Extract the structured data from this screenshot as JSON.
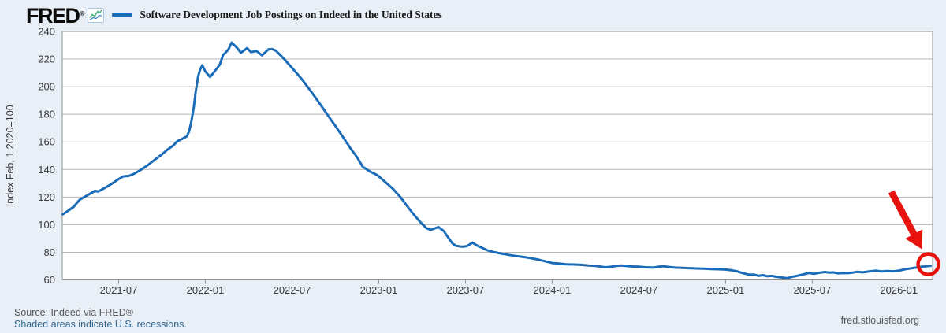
{
  "header": {
    "brand": "FRED",
    "registered": "®",
    "legend_series_label": "Software Development Job Postings on Indeed in the United States"
  },
  "footer": {
    "source": "Source: Indeed via FRED®",
    "recessions_note": "Shaded areas indicate U.S. recessions.",
    "site": "fred.stlouisfed.org"
  },
  "colors": {
    "background": "#e9eff7",
    "plot_background": "#ffffff",
    "series_blue": "#1b6cb8",
    "annotation_red": "#e8120f",
    "link_blue": "#2f6690",
    "gridline_gray": "#b5b5b5",
    "axis_gray": "#8f8f8f",
    "tick_text": "#3a3a3a"
  },
  "annotation": {
    "type": "hand-drawn-arrow-and-circle",
    "color": "#e8120f",
    "target_date": "2026-03-07",
    "target_value": 70.2,
    "meaning": "red arrow and circle highlighting the latest observation at the right edge of the line"
  },
  "chart_data": {
    "type": "line",
    "title": "Software Development Job Postings on Indeed in the United States",
    "xlabel": "",
    "ylabel": "Index Feb, 1 2020=100",
    "ylim": [
      60,
      240
    ],
    "y_ticks": [
      240,
      220,
      200,
      180,
      160,
      140,
      120,
      100,
      80,
      60
    ],
    "grid": "horizontal",
    "legend_position": "top-left",
    "x_range": [
      "2021-03-04",
      "2026-03-11"
    ],
    "x_ticks": [
      {
        "date": "2021-07-01",
        "label": "2021-07"
      },
      {
        "date": "2022-01-01",
        "label": "2022-01"
      },
      {
        "date": "2022-07-01",
        "label": "2022-07"
      },
      {
        "date": "2023-01-01",
        "label": "2023-01"
      },
      {
        "date": "2023-07-01",
        "label": "2023-07"
      },
      {
        "date": "2024-01-01",
        "label": "2024-01"
      },
      {
        "date": "2024-07-01",
        "label": "2024-07"
      },
      {
        "date": "2025-01-01",
        "label": "2025-01"
      },
      {
        "date": "2025-07-01",
        "label": "2025-07"
      },
      {
        "date": "2026-01-01",
        "label": "2026-01"
      }
    ],
    "series": [
      {
        "name": "Software Development Job Postings on Indeed in the United States",
        "color": "#1b6cb8",
        "points": [
          [
            "2021-03-05",
            107.5
          ],
          [
            "2021-03-16",
            110
          ],
          [
            "2021-03-28",
            113
          ],
          [
            "2021-04-10",
            118
          ],
          [
            "2021-04-25",
            121
          ],
          [
            "2021-05-12",
            124.5
          ],
          [
            "2021-05-19",
            124
          ],
          [
            "2021-05-28",
            125.7
          ],
          [
            "2021-06-14",
            129
          ],
          [
            "2021-07-01",
            133
          ],
          [
            "2021-07-11",
            135
          ],
          [
            "2021-07-22",
            135.3
          ],
          [
            "2021-08-01",
            136.5
          ],
          [
            "2021-08-16",
            139.5
          ],
          [
            "2021-09-01",
            143
          ],
          [
            "2021-09-16",
            147
          ],
          [
            "2021-10-01",
            151
          ],
          [
            "2021-10-13",
            154.5
          ],
          [
            "2021-10-25",
            157.5
          ],
          [
            "2021-11-03",
            160.5
          ],
          [
            "2021-11-12",
            162
          ],
          [
            "2021-11-23",
            164
          ],
          [
            "2021-11-28",
            168
          ],
          [
            "2021-12-02",
            175
          ],
          [
            "2021-12-07",
            185
          ],
          [
            "2021-12-11",
            196
          ],
          [
            "2021-12-16",
            207
          ],
          [
            "2021-12-20",
            212
          ],
          [
            "2021-12-25",
            215.5
          ],
          [
            "2022-01-01",
            211
          ],
          [
            "2022-01-11",
            207
          ],
          [
            "2022-01-17",
            209.5
          ],
          [
            "2022-02-01",
            216
          ],
          [
            "2022-02-08",
            223
          ],
          [
            "2022-02-14",
            225
          ],
          [
            "2022-02-19",
            227
          ],
          [
            "2022-02-26",
            232
          ],
          [
            "2022-03-06",
            228.4
          ],
          [
            "2022-03-15",
            224.6
          ],
          [
            "2022-03-28",
            227.9
          ],
          [
            "2022-04-06",
            225
          ],
          [
            "2022-04-17",
            225.9
          ],
          [
            "2022-04-29",
            222.7
          ],
          [
            "2022-05-12",
            227
          ],
          [
            "2022-05-20",
            227.2
          ],
          [
            "2022-05-28",
            226
          ],
          [
            "2022-06-15",
            220
          ],
          [
            "2022-07-04",
            212.4
          ],
          [
            "2022-07-21",
            205.7
          ],
          [
            "2022-08-03",
            200
          ],
          [
            "2022-08-16",
            194
          ],
          [
            "2022-09-01",
            186.5
          ],
          [
            "2022-09-16",
            179
          ],
          [
            "2022-10-01",
            171.5
          ],
          [
            "2022-10-16",
            164
          ],
          [
            "2022-11-01",
            156
          ],
          [
            "2022-11-16",
            149
          ],
          [
            "2022-11-28",
            142
          ],
          [
            "2022-12-13",
            138.5
          ],
          [
            "2022-12-28",
            136
          ],
          [
            "2023-01-16",
            130.5
          ],
          [
            "2023-02-01",
            125.7
          ],
          [
            "2023-02-16",
            120
          ],
          [
            "2023-03-01",
            113
          ],
          [
            "2023-03-16",
            106.5
          ],
          [
            "2023-04-01",
            100.5
          ],
          [
            "2023-04-10",
            97.5
          ],
          [
            "2023-04-19",
            96.2
          ],
          [
            "2023-05-05",
            98.3
          ],
          [
            "2023-05-16",
            95.5
          ],
          [
            "2023-05-25",
            91
          ],
          [
            "2023-06-04",
            86.5
          ],
          [
            "2023-06-11",
            84.7
          ],
          [
            "2023-06-25",
            84
          ],
          [
            "2023-07-04",
            84.5
          ],
          [
            "2023-07-16",
            87
          ],
          [
            "2023-07-25",
            85
          ],
          [
            "2023-08-04",
            83.5
          ],
          [
            "2023-08-16",
            81.5
          ],
          [
            "2023-09-01",
            80
          ],
          [
            "2023-09-16",
            79
          ],
          [
            "2023-10-01",
            78.1
          ],
          [
            "2023-10-16",
            77.3
          ],
          [
            "2023-11-01",
            76.6
          ],
          [
            "2023-11-16",
            75.8
          ],
          [
            "2023-12-01",
            74.8
          ],
          [
            "2023-12-16",
            73.5
          ],
          [
            "2024-01-01",
            72.2
          ],
          [
            "2024-01-16",
            71.8
          ],
          [
            "2024-02-01",
            71.3
          ],
          [
            "2024-02-16",
            71.1
          ],
          [
            "2024-03-01",
            70.9
          ],
          [
            "2024-03-16",
            70.4
          ],
          [
            "2024-04-01",
            70.1
          ],
          [
            "2024-04-13",
            69.6
          ],
          [
            "2024-04-22",
            69.1
          ],
          [
            "2024-05-01",
            69.4
          ],
          [
            "2024-05-16",
            70.2
          ],
          [
            "2024-05-25",
            70.4
          ],
          [
            "2024-06-07",
            70
          ],
          [
            "2024-06-19",
            69.7
          ],
          [
            "2024-07-01",
            69.5
          ],
          [
            "2024-07-16",
            69.1
          ],
          [
            "2024-08-01",
            68.9
          ],
          [
            "2024-08-13",
            69.6
          ],
          [
            "2024-08-22",
            69.9
          ],
          [
            "2024-09-01",
            69.4
          ],
          [
            "2024-09-16",
            68.9
          ],
          [
            "2024-10-01",
            68.7
          ],
          [
            "2024-10-16",
            68.5
          ],
          [
            "2024-11-01",
            68.3
          ],
          [
            "2024-11-16",
            68.1
          ],
          [
            "2024-12-01",
            67.9
          ],
          [
            "2024-12-16",
            67.7
          ],
          [
            "2025-01-01",
            67.5
          ],
          [
            "2025-01-13",
            67
          ],
          [
            "2025-01-25",
            66.2
          ],
          [
            "2025-02-07",
            64.9
          ],
          [
            "2025-02-19",
            63.9
          ],
          [
            "2025-03-01",
            63.8
          ],
          [
            "2025-03-10",
            62.9
          ],
          [
            "2025-03-19",
            63.4
          ],
          [
            "2025-03-28",
            62.6
          ],
          [
            "2025-04-07",
            62.9
          ],
          [
            "2025-04-16",
            62.3
          ],
          [
            "2025-05-01",
            61.6
          ],
          [
            "2025-05-10",
            61.2
          ],
          [
            "2025-05-19",
            62.2
          ],
          [
            "2025-06-01",
            63
          ],
          [
            "2025-06-16",
            64.3
          ],
          [
            "2025-06-25",
            65
          ],
          [
            "2025-07-04",
            64.4
          ],
          [
            "2025-07-16",
            65.2
          ],
          [
            "2025-07-28",
            65.7
          ],
          [
            "2025-08-07",
            65.3
          ],
          [
            "2025-08-16",
            65.4
          ],
          [
            "2025-08-25",
            64.8
          ],
          [
            "2025-09-04",
            65
          ],
          [
            "2025-09-16",
            64.9
          ],
          [
            "2025-09-25",
            65.3
          ],
          [
            "2025-10-04",
            65.8
          ],
          [
            "2025-10-16",
            65.5
          ],
          [
            "2025-11-01",
            66.2
          ],
          [
            "2025-11-13",
            66.6
          ],
          [
            "2025-11-25",
            66.1
          ],
          [
            "2025-12-07",
            66.4
          ],
          [
            "2025-12-19",
            66.2
          ],
          [
            "2026-01-01",
            66.7
          ],
          [
            "2026-01-16",
            67.8
          ],
          [
            "2026-02-01",
            68.6
          ],
          [
            "2026-02-16",
            69.4
          ],
          [
            "2026-03-01",
            70
          ],
          [
            "2026-03-07",
            70.2
          ]
        ]
      }
    ]
  }
}
